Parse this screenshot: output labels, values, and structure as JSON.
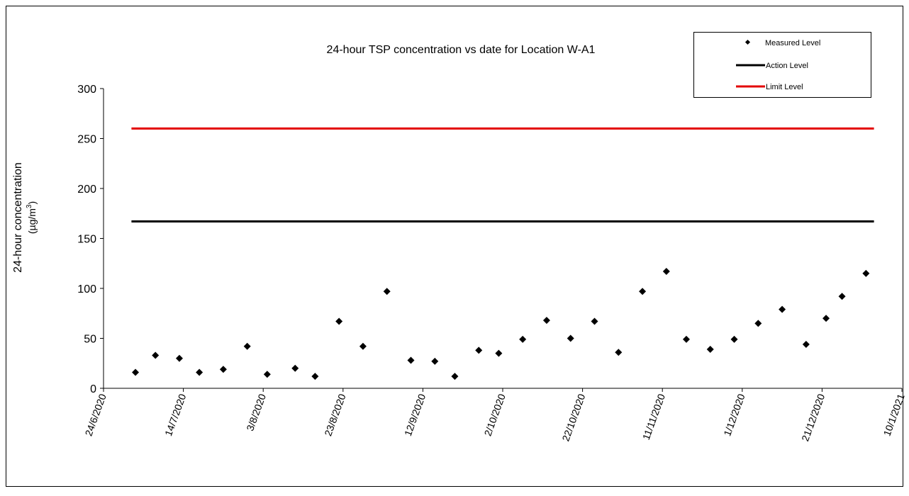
{
  "chart_data": {
    "type": "scatter",
    "title": "24-hour TSP concentration vs date for Location W-A1",
    "ylabel_line1": "24-hour concentration",
    "ylabel_unit_prefix": "(µg/m",
    "ylabel_unit_sup": "3",
    "ylabel_unit_suffix": ")",
    "xlabel": "",
    "x_type": "date",
    "xlim": [
      "2020-06-24",
      "2021-01-10"
    ],
    "ylim": [
      0,
      300
    ],
    "y_ticks": [
      0,
      50,
      100,
      150,
      200,
      250,
      300
    ],
    "x_ticks": [
      {
        "date": "2020-06-24",
        "label": "24/6/2020"
      },
      {
        "date": "2020-07-14",
        "label": "14/7/2020"
      },
      {
        "date": "2020-08-03",
        "label": "3/8/2020"
      },
      {
        "date": "2020-08-23",
        "label": "23/8/2020"
      },
      {
        "date": "2020-09-12",
        "label": "12/9/2020"
      },
      {
        "date": "2020-10-02",
        "label": "2/10/2020"
      },
      {
        "date": "2020-10-22",
        "label": "22/10/2020"
      },
      {
        "date": "2020-11-11",
        "label": "11/11/2020"
      },
      {
        "date": "2020-12-01",
        "label": "1/12/2020"
      },
      {
        "date": "2020-12-21",
        "label": "21/12/2020"
      },
      {
        "date": "2021-01-10",
        "label": "10/1/2021"
      }
    ],
    "series": [
      {
        "name": "Measured Level",
        "kind": "markers",
        "color": "#000000",
        "points": [
          {
            "x": "2020-07-02",
            "y": 16
          },
          {
            "x": "2020-07-07",
            "y": 33
          },
          {
            "x": "2020-07-13",
            "y": 30
          },
          {
            "x": "2020-07-18",
            "y": 16
          },
          {
            "x": "2020-07-24",
            "y": 19
          },
          {
            "x": "2020-07-30",
            "y": 42
          },
          {
            "x": "2020-08-04",
            "y": 14
          },
          {
            "x": "2020-08-11",
            "y": 20
          },
          {
            "x": "2020-08-16",
            "y": 12
          },
          {
            "x": "2020-08-22",
            "y": 67
          },
          {
            "x": "2020-08-28",
            "y": 42
          },
          {
            "x": "2020-09-03",
            "y": 97
          },
          {
            "x": "2020-09-09",
            "y": 28
          },
          {
            "x": "2020-09-15",
            "y": 27
          },
          {
            "x": "2020-09-20",
            "y": 12
          },
          {
            "x": "2020-09-26",
            "y": 38
          },
          {
            "x": "2020-10-01",
            "y": 35
          },
          {
            "x": "2020-10-07",
            "y": 49
          },
          {
            "x": "2020-10-13",
            "y": 68
          },
          {
            "x": "2020-10-19",
            "y": 50
          },
          {
            "x": "2020-10-25",
            "y": 67
          },
          {
            "x": "2020-10-31",
            "y": 36
          },
          {
            "x": "2020-11-06",
            "y": 97
          },
          {
            "x": "2020-11-12",
            "y": 117
          },
          {
            "x": "2020-11-17",
            "y": 49
          },
          {
            "x": "2020-11-23",
            "y": 39
          },
          {
            "x": "2020-11-29",
            "y": 49
          },
          {
            "x": "2020-12-05",
            "y": 65
          },
          {
            "x": "2020-12-11",
            "y": 79
          },
          {
            "x": "2020-12-17",
            "y": 44
          },
          {
            "x": "2020-12-22",
            "y": 70
          },
          {
            "x": "2020-12-26",
            "y": 92
          },
          {
            "x": "2021-01-01",
            "y": 115
          }
        ]
      },
      {
        "name": "Action Level",
        "kind": "line",
        "color": "#000000",
        "points": [
          {
            "x": "2020-07-01",
            "y": 167
          },
          {
            "x": "2021-01-03",
            "y": 167
          }
        ]
      },
      {
        "name": "Limit Level",
        "kind": "line",
        "color": "#e30000",
        "points": [
          {
            "x": "2020-07-01",
            "y": 260
          },
          {
            "x": "2021-01-03",
            "y": 260
          }
        ]
      }
    ],
    "legend_position": "top-right",
    "grid": false
  }
}
